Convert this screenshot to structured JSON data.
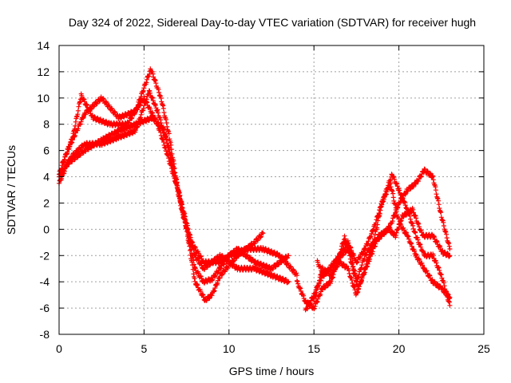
{
  "chart_data": {
    "type": "scatter",
    "title": "Day 324 of 2022, Sidereal Day-to-day VTEC variation (SDTVAR) for receiver hugh",
    "xlabel": "GPS time / hours",
    "ylabel": "SDTVAR / TECUs",
    "xlim": [
      0,
      25
    ],
    "ylim": [
      -8,
      14
    ],
    "xticks": [
      0,
      5,
      10,
      15,
      20,
      25
    ],
    "yticks": [
      -8,
      -6,
      -4,
      -2,
      0,
      2,
      4,
      6,
      8,
      10,
      12,
      14
    ],
    "grid": true,
    "marker": "+",
    "color": "#ff0000",
    "series": [
      {
        "name": "track-1",
        "points": [
          [
            0,
            4.2
          ],
          [
            0.5,
            6
          ],
          [
            1.5,
            8.8
          ],
          [
            2.5,
            10
          ],
          [
            3.5,
            8.5
          ],
          [
            4.5,
            9
          ],
          [
            5.4,
            12.2
          ],
          [
            6,
            10
          ],
          [
            6.5,
            7
          ],
          [
            7,
            3
          ],
          [
            7.5,
            0
          ],
          [
            8,
            -4
          ],
          [
            8.6,
            -5.4
          ],
          [
            9,
            -5
          ],
          [
            9.5,
            -3.5
          ],
          [
            10.5,
            -2
          ],
          [
            11.5,
            -1
          ],
          [
            12,
            -0.3
          ]
        ]
      },
      {
        "name": "track-2",
        "points": [
          [
            0,
            3.5
          ],
          [
            0.5,
            5
          ],
          [
            1.5,
            6
          ],
          [
            2.5,
            6.8
          ],
          [
            3.5,
            7.5
          ],
          [
            4.5,
            8
          ],
          [
            5.5,
            8.5
          ],
          [
            6.2,
            7.5
          ],
          [
            6.8,
            4
          ],
          [
            7.3,
            1
          ],
          [
            8,
            -2
          ],
          [
            8.5,
            -3
          ],
          [
            9.5,
            -2
          ],
          [
            10.5,
            -3
          ],
          [
            11.5,
            -3
          ],
          [
            12.5,
            -3.5
          ],
          [
            13.5,
            -4
          ]
        ]
      },
      {
        "name": "track-3",
        "points": [
          [
            0,
            4
          ],
          [
            0.7,
            5.5
          ],
          [
            1.5,
            6.5
          ],
          [
            2.5,
            6.5
          ],
          [
            3.5,
            7
          ],
          [
            4.5,
            7.5
          ],
          [
            5.3,
            10.5
          ],
          [
            5.8,
            9
          ],
          [
            6.5,
            6
          ],
          [
            7.2,
            2
          ],
          [
            8,
            -3
          ],
          [
            8.5,
            -4
          ],
          [
            9,
            -3.8
          ],
          [
            10,
            -2
          ],
          [
            11,
            -1.5
          ],
          [
            12,
            -1.5
          ],
          [
            13,
            -2
          ],
          [
            14,
            -3.5
          ]
        ]
      },
      {
        "name": "track-4",
        "points": [
          [
            0.2,
            5
          ],
          [
            0.8,
            7
          ],
          [
            1.3,
            10.2
          ],
          [
            2,
            8.5
          ],
          [
            3,
            8
          ],
          [
            4,
            8
          ],
          [
            5,
            10
          ],
          [
            5.8,
            8
          ],
          [
            6.3,
            6
          ],
          [
            7,
            3
          ],
          [
            7.8,
            -1
          ],
          [
            8.5,
            -2.5
          ],
          [
            9.5,
            -2.5
          ],
          [
            10.5,
            -1.5
          ],
          [
            11.5,
            -2.5
          ],
          [
            12.5,
            -3
          ],
          [
            13.5,
            -2
          ]
        ]
      },
      {
        "name": "track-5",
        "points": [
          [
            14,
            -4
          ],
          [
            14.5,
            -5.5
          ],
          [
            15,
            -6
          ],
          [
            15.5,
            -4.5
          ],
          [
            16,
            -4
          ],
          [
            16.5,
            -2
          ],
          [
            16.8,
            -0.6
          ],
          [
            17.2,
            -2
          ],
          [
            17.5,
            -4
          ],
          [
            18,
            -2
          ],
          [
            18.5,
            -1
          ],
          [
            19,
            2
          ],
          [
            19.6,
            4.2
          ],
          [
            20,
            3
          ],
          [
            20.5,
            1.5
          ],
          [
            21,
            -0.5
          ],
          [
            21.5,
            -2
          ],
          [
            22,
            -2
          ],
          [
            22.5,
            -3.5
          ],
          [
            23,
            -5.8
          ]
        ]
      },
      {
        "name": "track-6",
        "points": [
          [
            14.5,
            -6.2
          ],
          [
            15,
            -5
          ],
          [
            15.5,
            -3.5
          ],
          [
            16,
            -3
          ],
          [
            16.5,
            -2
          ],
          [
            17,
            -1
          ],
          [
            17.5,
            -2.5
          ],
          [
            18,
            -1.5
          ],
          [
            18.5,
            0
          ],
          [
            19,
            2
          ],
          [
            19.5,
            3.5
          ],
          [
            20,
            0.5
          ],
          [
            20.5,
            -0.5
          ],
          [
            21,
            -2
          ],
          [
            21.5,
            -3
          ],
          [
            22,
            -4
          ],
          [
            22.5,
            -4.5
          ],
          [
            23,
            -5.2
          ]
        ]
      },
      {
        "name": "track-7",
        "points": [
          [
            15,
            -5.5
          ],
          [
            15.5,
            -3
          ],
          [
            16,
            -3.5
          ],
          [
            16.5,
            -2.5
          ],
          [
            17,
            -3
          ],
          [
            17.5,
            -5
          ],
          [
            18,
            -3
          ],
          [
            18.5,
            -1
          ],
          [
            19,
            -0.5
          ],
          [
            19.5,
            0.3
          ],
          [
            20,
            2
          ],
          [
            20.5,
            3
          ],
          [
            21,
            3.5
          ],
          [
            21.5,
            4.5
          ],
          [
            22,
            4
          ],
          [
            22.5,
            1
          ],
          [
            23,
            -1.5
          ]
        ]
      },
      {
        "name": "track-8",
        "points": [
          [
            15.2,
            -2.5
          ],
          [
            15.6,
            -3.5
          ],
          [
            16.2,
            -2.5
          ],
          [
            17,
            -1.5
          ],
          [
            17.6,
            -4.5
          ],
          [
            18.2,
            -2.5
          ],
          [
            18.8,
            -0.5
          ],
          [
            19.4,
            0
          ],
          [
            19.8,
            -0.5
          ],
          [
            20.2,
            1
          ],
          [
            20.8,
            1.5
          ],
          [
            21.4,
            -0.5
          ],
          [
            22,
            -0.5
          ],
          [
            22.6,
            -1.8
          ],
          [
            23,
            -2
          ]
        ]
      }
    ]
  }
}
